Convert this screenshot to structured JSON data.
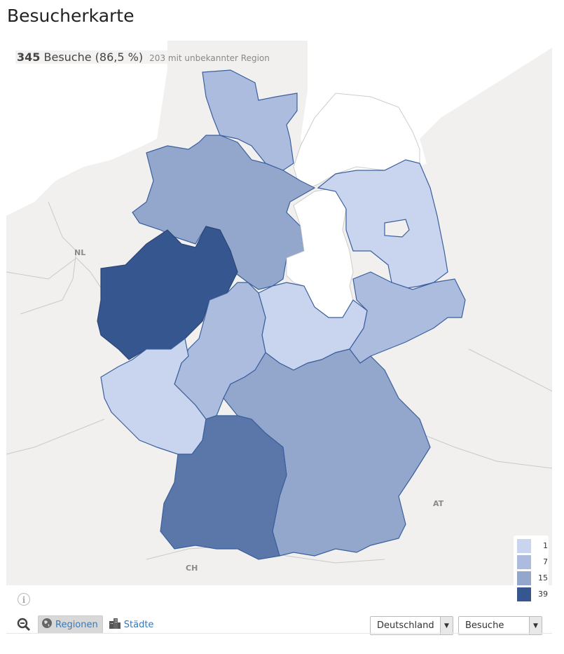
{
  "title": "Besucherkarte",
  "summary": {
    "visits_count": "345",
    "visits_label": "Besuche",
    "visits_percent": "(86,5 %)",
    "unknown_region": "203 mit unbekannter Region"
  },
  "country_labels": {
    "nl": "NL",
    "at": "AT",
    "ch": "CH"
  },
  "legend": [
    {
      "value": "1",
      "color": "#c9d5ee"
    },
    {
      "value": "7",
      "color": "#abbcde"
    },
    {
      "value": "15",
      "color": "#93a7cd"
    },
    {
      "value": "39",
      "color": "#36568f"
    }
  ],
  "regions": [
    {
      "name": "Schleswig-Holstein",
      "color": "#abbcde"
    },
    {
      "name": "Niedersachsen",
      "color": "#93a7cd"
    },
    {
      "name": "Nordrhein-Westfalen",
      "color": "#36568f"
    },
    {
      "name": "Hessen",
      "color": "#abbcde"
    },
    {
      "name": "Rheinland-Pfalz",
      "color": "#c9d5ee"
    },
    {
      "name": "Baden-Württemberg",
      "color": "#5b76a9"
    },
    {
      "name": "Bayern",
      "color": "#93a7cd"
    },
    {
      "name": "Thüringen",
      "color": "#c9d5ee"
    },
    {
      "name": "Sachsen",
      "color": "#abbcde"
    },
    {
      "name": "Brandenburg",
      "color": "#c9d5ee"
    },
    {
      "name": "Sachsen-Anhalt",
      "color": "#ffffff"
    },
    {
      "name": "Mecklenburg-Vorpommern",
      "color": "#ffffff"
    }
  ],
  "toolbar": {
    "zoom_icon": "zoom-out-icon",
    "regions_label": "Regionen",
    "cities_label": "Städte",
    "info_label": "i"
  },
  "selects": {
    "country": "Deutschland",
    "metric": "Besuche"
  }
}
